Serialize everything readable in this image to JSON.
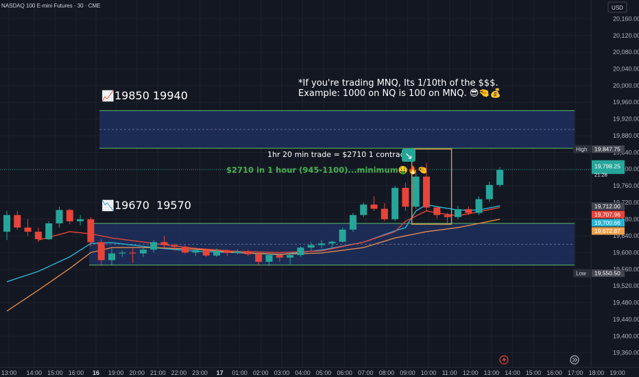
{
  "header": {
    "symbol": "NASDAQ 100 E-mini Futures · 30 · CME"
  },
  "currency_button": "USD",
  "chart_data": {
    "type": "candlestick",
    "title": "NASDAQ 100 E-mini Futures · 30 · CME",
    "ylim": [
      19325,
      20205
    ],
    "y_ticks": [
      20160,
      20120,
      20080,
      20040,
      20000,
      19960,
      19920,
      19880,
      19840,
      19800,
      19760,
      19720,
      19680,
      19640,
      19600,
      19560,
      19520,
      19480,
      19440,
      19400,
      19360
    ],
    "x_ticks": [
      {
        "label": "13:00",
        "i": 0.2
      },
      {
        "label": "14:00",
        "i": 2.6
      },
      {
        "label": "15:00",
        "i": 4.6
      },
      {
        "label": "16:00",
        "i": 6.6
      },
      {
        "label": "16",
        "i": 8.5,
        "bold": true
      },
      {
        "label": "19:00",
        "i": 10.4
      },
      {
        "label": "20:00",
        "i": 12.4
      },
      {
        "label": "21:00",
        "i": 14.4
      },
      {
        "label": "22:00",
        "i": 16.4
      },
      {
        "label": "23:00",
        "i": 18.4
      },
      {
        "label": "17",
        "i": 20.3,
        "bold": true
      },
      {
        "label": "01:00",
        "i": 22.2
      },
      {
        "label": "02:00",
        "i": 24.2
      },
      {
        "label": "03:00",
        "i": 26.2
      },
      {
        "label": "04:00",
        "i": 28.2
      },
      {
        "label": "05:00",
        "i": 30.2
      },
      {
        "label": "06:00",
        "i": 32.2
      },
      {
        "label": "07:00",
        "i": 34.2
      },
      {
        "label": "08:00",
        "i": 36.2
      },
      {
        "label": "09:00",
        "i": 38.2
      },
      {
        "label": "10:00",
        "i": 40.2
      },
      {
        "label": "11:00",
        "i": 42.2
      },
      {
        "label": "12:00",
        "i": 44.2
      },
      {
        "label": "13:00",
        "i": 46.2
      },
      {
        "label": "14:00",
        "i": 48.2
      },
      {
        "label": "15:00",
        "i": 50.2
      },
      {
        "label": "16:00",
        "i": 52.2
      },
      {
        "label": "17:00",
        "i": 54.2
      },
      {
        "label": "18:00",
        "i": 56.2
      },
      {
        "label": "19:00",
        "i": 58.2
      }
    ],
    "candles": [
      [
        19650,
        19700,
        19630,
        19690
      ],
      [
        19690,
        19700,
        19655,
        19660
      ],
      [
        19660,
        19680,
        19640,
        19650
      ],
      [
        19650,
        19660,
        19625,
        19632
      ],
      [
        19632,
        19675,
        19630,
        19670
      ],
      [
        19670,
        19710,
        19660,
        19702
      ],
      [
        19702,
        19705,
        19668,
        19675
      ],
      [
        19675,
        19690,
        19665,
        19680
      ],
      [
        19680,
        19685,
        19615,
        19625
      ],
      [
        19625,
        19632,
        19568,
        19582
      ],
      [
        19582,
        19610,
        19570,
        19598
      ],
      [
        19598,
        19605,
        19590,
        19600
      ],
      [
        19600,
        19610,
        19575,
        19598
      ],
      [
        19598,
        19612,
        19590,
        19607
      ],
      [
        19607,
        19630,
        19600,
        19625
      ],
      [
        19625,
        19640,
        19612,
        19618
      ],
      [
        19618,
        19622,
        19605,
        19614
      ],
      [
        19614,
        19618,
        19597,
        19600
      ],
      [
        19600,
        19612,
        19592,
        19606
      ],
      [
        19606,
        19610,
        19590,
        19593
      ],
      [
        19593,
        19610,
        19590,
        19604
      ],
      [
        19604,
        19608,
        19592,
        19599
      ],
      [
        19599,
        19608,
        19596,
        19603
      ],
      [
        19603,
        19607,
        19592,
        19596
      ],
      [
        19596,
        19600,
        19570,
        19578
      ],
      [
        19578,
        19598,
        19568,
        19594
      ],
      [
        19594,
        19597,
        19578,
        19588
      ],
      [
        19588,
        19600,
        19572,
        19594
      ],
      [
        19594,
        19615,
        19590,
        19612
      ],
      [
        19612,
        19625,
        19605,
        19618
      ],
      [
        19618,
        19630,
        19610,
        19622
      ],
      [
        19622,
        19628,
        19612,
        19626
      ],
      [
        19626,
        19660,
        19624,
        19655
      ],
      [
        19655,
        19695,
        19650,
        19690
      ],
      [
        19690,
        19720,
        19685,
        19715
      ],
      [
        19715,
        19735,
        19700,
        19705
      ],
      [
        19705,
        19718,
        19675,
        19680
      ],
      [
        19680,
        19760,
        19675,
        19755
      ],
      [
        19755,
        19768,
        19700,
        19710
      ],
      [
        19710,
        19790,
        19705,
        19782
      ],
      [
        19782,
        19815,
        19700,
        19708
      ],
      [
        19708,
        19712,
        19682,
        19690
      ],
      [
        19690,
        19695,
        19670,
        19685
      ],
      [
        19685,
        19712,
        19680,
        19704
      ],
      [
        19704,
        19710,
        19690,
        19695
      ],
      [
        19695,
        19735,
        19690,
        19728
      ],
      [
        19728,
        19770,
        19722,
        19762
      ],
      [
        19762,
        19805,
        19757,
        19798
      ]
    ],
    "series": [
      {
        "name": "",
        "color": "#29b6d6",
        "points": [
          [
            0,
            19530
          ],
          [
            3,
            19555
          ],
          [
            6,
            19590
          ],
          [
            8,
            19622
          ],
          [
            10,
            19624
          ],
          [
            14,
            19612
          ],
          [
            18,
            19603
          ],
          [
            22,
            19600
          ],
          [
            26,
            19595
          ],
          [
            30,
            19606
          ],
          [
            34,
            19625
          ],
          [
            37,
            19652
          ],
          [
            38,
            19660
          ],
          [
            39,
            19700
          ],
          [
            40,
            19715
          ],
          [
            41,
            19710
          ],
          [
            43,
            19702
          ],
          [
            45,
            19702
          ],
          [
            46,
            19707
          ],
          [
            47,
            19712
          ]
        ]
      },
      {
        "name": "",
        "color": "#e8443a",
        "points": [
          [
            3,
            19630
          ],
          [
            6,
            19650
          ],
          [
            8,
            19645
          ],
          [
            10,
            19635
          ],
          [
            14,
            19622
          ],
          [
            18,
            19610
          ],
          [
            22,
            19603
          ],
          [
            26,
            19600
          ],
          [
            30,
            19604
          ],
          [
            34,
            19625
          ],
          [
            37,
            19650
          ],
          [
            38,
            19675
          ],
          [
            40,
            19700
          ],
          [
            41,
            19695
          ],
          [
            43,
            19688
          ],
          [
            45,
            19698
          ],
          [
            47,
            19708
          ]
        ]
      },
      {
        "name": "",
        "color": "#e08b4e",
        "points": [
          [
            0,
            19460
          ],
          [
            3,
            19510
          ],
          [
            6,
            19562
          ],
          [
            8,
            19600
          ],
          [
            10,
            19612
          ],
          [
            14,
            19612
          ],
          [
            18,
            19608
          ],
          [
            22,
            19600
          ],
          [
            26,
            19596
          ],
          [
            30,
            19599
          ],
          [
            34,
            19612
          ],
          [
            37,
            19635
          ],
          [
            40,
            19650
          ],
          [
            43,
            19660
          ],
          [
            47,
            19680
          ]
        ]
      }
    ],
    "zones": [
      {
        "from": 19850,
        "to": 19940,
        "color": "#1e2d5a",
        "label": "19850 19940"
      },
      {
        "from": 19570,
        "to": 19670,
        "color": "#1e2d5a",
        "label": "19670  19570"
      }
    ],
    "badges": [
      {
        "label": "High",
        "value": "19,847.75",
        "price": 19847.75,
        "bg": "#434651"
      },
      {
        "value": "19,798.25",
        "sub": "21:28",
        "price": 19798.25,
        "bg": "#26a69a"
      },
      {
        "value": "19,712.00",
        "price": 19712,
        "bg": "#434651"
      },
      {
        "value": "19,707.96",
        "price": 19707.96,
        "bg": "#e8443a"
      },
      {
        "value": "19,700.66",
        "price": 19700.66,
        "bg": "#29b6d6"
      },
      {
        "value": "19,672.87",
        "price": 19672.87,
        "bg": "#f0a04a"
      },
      {
        "label": "Low",
        "value": "19,550.50",
        "price": 19550.5,
        "bg": "#434651"
      }
    ],
    "annotations": {
      "note_line1": "*If you're trading MNQ, Its 1/10th of the $$$.",
      "note_line2": "Example: 1000 on NQ is 100 on MNQ. 😎🤏💰",
      "trade": "1hr 20 min trade = $2710 1 contract.",
      "profit": "$2710 in 1 hour (945-1100)...minimum🤑🔥🤏",
      "upper_icon": "📈",
      "lower_icon": "📉",
      "arrow_icon": "↘"
    },
    "colors": {
      "up": "#26a69a",
      "down": "#e8443a",
      "zone_border": "#5cbf68",
      "highlight": "#f0a04a",
      "profit_text": "#4caf50"
    },
    "icons": {
      "lightning": "lightning-icon",
      "forward": "forward-arrow-icon"
    }
  }
}
